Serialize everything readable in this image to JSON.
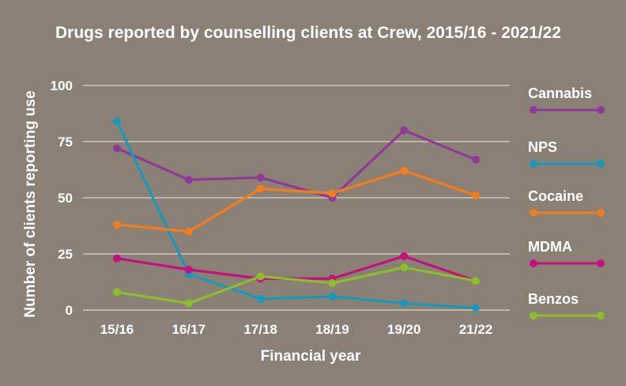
{
  "chart_data": {
    "type": "line",
    "title": "Drugs reported by counselling clients at Crew, 2015/16 - 2021/22",
    "xlabel": "Financial year",
    "ylabel": "Number of clients reporting use",
    "categories": [
      "15/16",
      "16/17",
      "17/18",
      "18/19",
      "19/20",
      "21/22"
    ],
    "ylim": [
      0,
      100
    ],
    "yticks": [
      "0",
      "25",
      "50",
      "75",
      "100"
    ],
    "grid": true,
    "legend_position": "right",
    "series": [
      {
        "name": "Cannabis",
        "color": "#8e3a96",
        "values": [
          72,
          58,
          59,
          50,
          80,
          67
        ]
      },
      {
        "name": "NPS",
        "color": "#1a98b8",
        "values": [
          84,
          16,
          5,
          6,
          3,
          1
        ]
      },
      {
        "name": "Cocaine",
        "color": "#f07d1e",
        "values": [
          38,
          35,
          54,
          52,
          62,
          51
        ]
      },
      {
        "name": "MDMA",
        "color": "#c2127e",
        "values": [
          23,
          18,
          14,
          14,
          24,
          13
        ]
      },
      {
        "name": "Benzos",
        "color": "#8cbd2a",
        "values": [
          8,
          3,
          15,
          12,
          19,
          13
        ]
      }
    ]
  }
}
